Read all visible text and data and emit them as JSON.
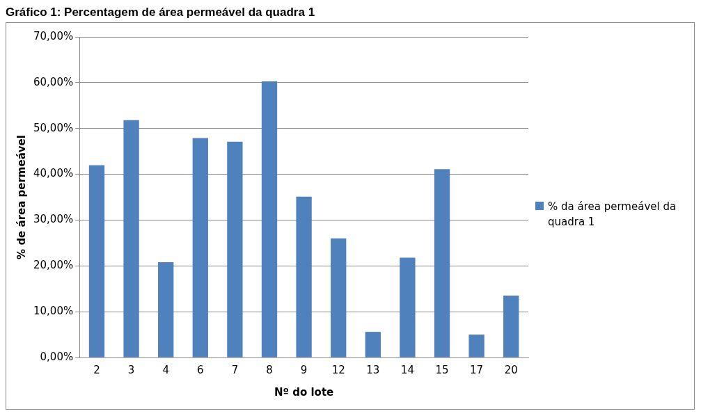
{
  "chart_data": {
    "type": "bar",
    "title": "Gráfico 1: Percentagem de área permeável da quadra 1",
    "xlabel": "Nº do lote",
    "ylabel": "% de área permeável",
    "categories": [
      "2",
      "3",
      "4",
      "6",
      "7",
      "8",
      "9",
      "12",
      "13",
      "14",
      "15",
      "17",
      "20"
    ],
    "series": [
      {
        "name": "% da área permeável da quadra 1",
        "color": "#4f81bd",
        "values": [
          42.0,
          51.8,
          20.8,
          47.9,
          47.1,
          60.3,
          35.1,
          26.0,
          5.6,
          21.8,
          41.1,
          5.0,
          13.5
        ]
      }
    ],
    "ylim": [
      0,
      70
    ],
    "yticks": [
      {
        "value": 0,
        "label": "0,00%"
      },
      {
        "value": 10,
        "label": "10,00%"
      },
      {
        "value": 20,
        "label": "20,00%"
      },
      {
        "value": 30,
        "label": "30,00%"
      },
      {
        "value": 40,
        "label": "40,00%"
      },
      {
        "value": 50,
        "label": "50,00%"
      },
      {
        "value": 60,
        "label": "60,00%"
      },
      {
        "value": 70,
        "label": "70,00%"
      }
    ],
    "grid": "y",
    "legend": "right"
  }
}
